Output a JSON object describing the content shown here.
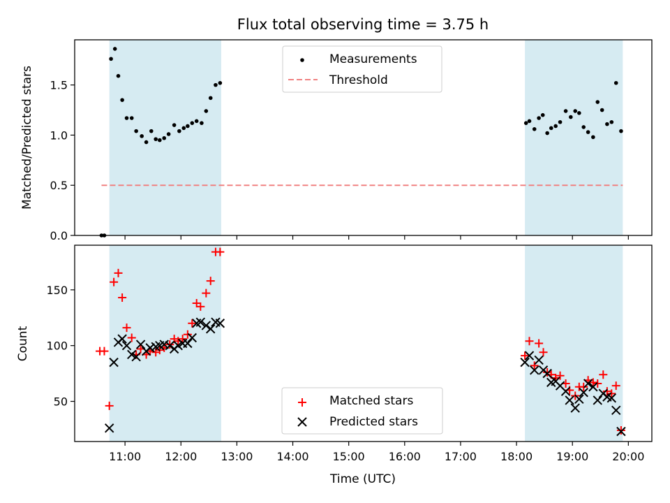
{
  "title": "Flux total observing time = 3.75 h",
  "colors": {
    "measurement": "#000000",
    "threshold": "#f08080",
    "matched": "#ff0000",
    "predicted": "#000000",
    "shade": "#add8e6"
  },
  "chart_data": [
    {
      "type": "scatter",
      "ylabel": "Matched/Predicted stars",
      "xlim": [
        10.1,
        20.42
      ],
      "ylim": [
        0,
        1.95
      ],
      "yticks": [
        0.0,
        0.5,
        1.0,
        1.5
      ],
      "ytick_labels": [
        "0.0",
        "0.5",
        "1.0",
        "1.5"
      ],
      "xtick_labels_shown": false,
      "shaded_regions": [
        [
          10.72,
          12.72
        ],
        [
          18.15,
          19.9
        ]
      ],
      "legend": {
        "position": "top-center",
        "entries": [
          "Measurements",
          "Threshold"
        ]
      },
      "threshold": {
        "name": "Threshold",
        "y": 0.5,
        "x_range": [
          10.58,
          19.9
        ]
      },
      "series": [
        {
          "name": "Measurements",
          "marker": "dot",
          "x": [
            10.58,
            10.63,
            10.75,
            10.82,
            10.88,
            10.95,
            11.03,
            11.12,
            11.2,
            11.3,
            11.38,
            11.47,
            11.55,
            11.62,
            11.7,
            11.78,
            11.88,
            11.97,
            12.05,
            12.12,
            12.2,
            12.28,
            12.37,
            12.45,
            12.53,
            12.62,
            12.7,
            18.17,
            18.23,
            18.32,
            18.4,
            18.47,
            18.55,
            18.62,
            18.7,
            18.78,
            18.88,
            18.97,
            19.05,
            19.12,
            19.2,
            19.28,
            19.37,
            19.45,
            19.53,
            19.62,
            19.7,
            19.78,
            19.87
          ],
          "values": [
            0.0,
            0.0,
            1.76,
            1.86,
            1.59,
            1.35,
            1.17,
            1.17,
            1.04,
            0.99,
            0.93,
            1.04,
            0.96,
            0.95,
            0.97,
            1.01,
            1.1,
            1.04,
            1.07,
            1.09,
            1.12,
            1.14,
            1.12,
            1.24,
            1.37,
            1.5,
            1.52,
            1.12,
            1.14,
            1.06,
            1.17,
            1.2,
            1.02,
            1.07,
            1.09,
            1.13,
            1.24,
            1.18,
            1.24,
            1.22,
            1.08,
            1.03,
            0.98,
            1.33,
            1.25,
            1.11,
            1.13,
            1.52,
            1.04
          ]
        }
      ]
    },
    {
      "type": "scatter",
      "xlabel": "Time (UTC)",
      "ylabel": "Count",
      "xlim": [
        10.1,
        20.42
      ],
      "ylim": [
        14,
        190
      ],
      "xticks": [
        11,
        12,
        13,
        14,
        15,
        16,
        17,
        18,
        19,
        20
      ],
      "xtick_labels": [
        "11:00",
        "12:00",
        "13:00",
        "14:00",
        "15:00",
        "16:00",
        "17:00",
        "18:00",
        "19:00",
        "20:00"
      ],
      "yticks": [
        50,
        100,
        150
      ],
      "ytick_labels": [
        "50",
        "100",
        "150"
      ],
      "shaded_regions": [
        [
          10.72,
          12.72
        ],
        [
          18.15,
          19.9
        ]
      ],
      "legend": {
        "position": "bottom-center",
        "entries": [
          "Matched stars",
          "Predicted stars"
        ]
      },
      "series": [
        {
          "name": "Matched stars",
          "marker": "plus",
          "x": [
            10.55,
            10.63,
            10.72,
            10.8,
            10.88,
            10.95,
            11.03,
            11.12,
            11.2,
            11.28,
            11.38,
            11.45,
            11.55,
            11.62,
            11.7,
            11.8,
            11.88,
            11.95,
            12.03,
            12.12,
            12.2,
            12.28,
            12.35,
            12.45,
            12.53,
            12.62,
            12.7,
            18.15,
            18.23,
            18.32,
            18.4,
            18.48,
            18.55,
            18.62,
            18.7,
            18.78,
            18.88,
            18.95,
            19.05,
            19.12,
            19.2,
            19.28,
            19.37,
            19.45,
            19.55,
            19.62,
            19.7,
            19.78,
            19.87
          ],
          "values": [
            95,
            95,
            46,
            157,
            165,
            143,
            116,
            107,
            92,
            97,
            92,
            95,
            94,
            96,
            98,
            101,
            106,
            104,
            106,
            110,
            120,
            138,
            135,
            147,
            158,
            184,
            184,
            91,
            104,
            82,
            102,
            94,
            76,
            74,
            71,
            73,
            66,
            60,
            55,
            63,
            63,
            69,
            67,
            66,
            74,
            59,
            57,
            64,
            24
          ]
        },
        {
          "name": "Predicted stars",
          "marker": "x",
          "x": [
            10.72,
            10.8,
            10.88,
            10.95,
            11.03,
            11.12,
            11.2,
            11.28,
            11.38,
            11.45,
            11.55,
            11.62,
            11.7,
            11.8,
            11.88,
            11.95,
            12.03,
            12.12,
            12.2,
            12.28,
            12.35,
            12.45,
            12.53,
            12.62,
            12.7,
            18.15,
            18.23,
            18.32,
            18.4,
            18.48,
            18.55,
            18.62,
            18.7,
            18.78,
            18.88,
            18.95,
            19.05,
            19.12,
            19.2,
            19.28,
            19.37,
            19.45,
            19.55,
            19.62,
            19.7,
            19.78,
            19.87
          ],
          "values": [
            26,
            85,
            103,
            106,
            100,
            92,
            90,
            101,
            95,
            98,
            99,
            100,
            101,
            100,
            97,
            100,
            102,
            102,
            107,
            120,
            121,
            118,
            115,
            121,
            120,
            85,
            91,
            78,
            87,
            78,
            75,
            67,
            68,
            64,
            59,
            51,
            44,
            52,
            58,
            66,
            63,
            51,
            57,
            54,
            53,
            42,
            23
          ]
        }
      ]
    }
  ]
}
